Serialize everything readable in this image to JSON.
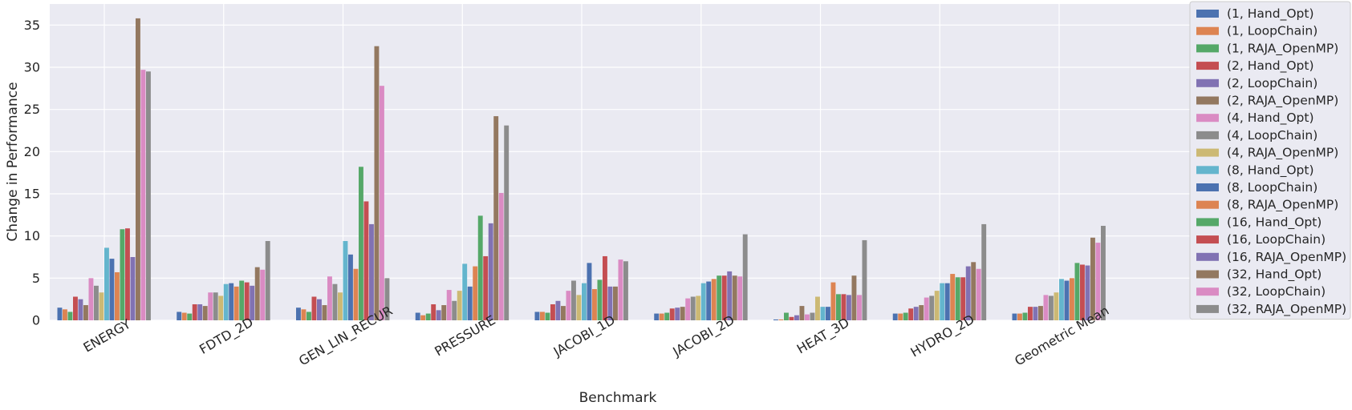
{
  "chart_data": {
    "type": "bar",
    "xlabel": "Benchmark",
    "ylabel": "Change in Performance",
    "ylim": [
      0,
      37.5
    ],
    "yticks": [
      0,
      5,
      10,
      15,
      20,
      25,
      30,
      35
    ],
    "grid": true,
    "legend_position": "right",
    "categories": [
      "ENERGY",
      "FDTD_2D",
      "GEN_LIN_RECUR",
      "PRESSURE",
      "JACOBI_1D",
      "JACOBI_2D",
      "HEAT_3D",
      "HYDRO_2D",
      "Geometric Mean"
    ],
    "series": [
      {
        "name": "(1, Hand_Opt)",
        "color": "#4c72b0",
        "values": [
          1.5,
          1.0,
          1.5,
          0.9,
          1.0,
          0.8,
          0.1,
          0.8,
          0.8
        ]
      },
      {
        "name": "(1, LoopChain)",
        "color": "#dd8452",
        "values": [
          1.3,
          0.9,
          1.3,
          0.6,
          1.0,
          0.8,
          0.1,
          0.8,
          0.8
        ]
      },
      {
        "name": "(1, RAJA_OpenMP)",
        "color": "#55a868",
        "values": [
          1.0,
          0.8,
          1.0,
          0.8,
          0.9,
          0.9,
          0.9,
          0.9,
          0.9
        ]
      },
      {
        "name": "(2, Hand_Opt)",
        "color": "#c44e52",
        "values": [
          2.8,
          1.9,
          2.8,
          1.9,
          1.9,
          1.4,
          0.4,
          1.4,
          1.6
        ]
      },
      {
        "name": "(2, LoopChain)",
        "color": "#8172b3",
        "values": [
          2.5,
          1.9,
          2.5,
          1.2,
          2.3,
          1.5,
          0.6,
          1.6,
          1.6
        ]
      },
      {
        "name": "(2, RAJA_OpenMP)",
        "color": "#937860",
        "values": [
          1.8,
          1.7,
          1.8,
          1.8,
          1.7,
          1.6,
          1.7,
          1.8,
          1.7
        ]
      },
      {
        "name": "(4, Hand_Opt)",
        "color": "#da8bc3",
        "values": [
          5.0,
          3.3,
          5.2,
          3.6,
          3.5,
          2.6,
          0.7,
          2.7,
          3.0
        ]
      },
      {
        "name": "(4, LoopChain)",
        "color": "#8c8c8c",
        "values": [
          4.1,
          3.3,
          4.3,
          2.3,
          4.7,
          2.8,
          0.9,
          2.9,
          2.9
        ]
      },
      {
        "name": "(4, RAJA_OpenMP)",
        "color": "#ccb974",
        "values": [
          3.3,
          2.9,
          3.3,
          3.5,
          3.0,
          2.9,
          2.8,
          3.5,
          3.3
        ]
      },
      {
        "name": "(8, Hand_Opt)",
        "color": "#64b5cd",
        "values": [
          8.6,
          4.3,
          9.4,
          6.7,
          4.4,
          4.4,
          1.6,
          4.4,
          4.9
        ]
      },
      {
        "name": "(8, LoopChain)",
        "color": "#4c72b0",
        "values": [
          7.3,
          4.4,
          7.8,
          4.0,
          6.8,
          4.6,
          1.6,
          4.4,
          4.7
        ]
      },
      {
        "name": "(8, RAJA_OpenMP)",
        "color": "#dd8452",
        "values": [
          5.7,
          4.0,
          6.1,
          6.4,
          3.7,
          4.9,
          4.5,
          5.5,
          5.0
        ]
      },
      {
        "name": "(16, Hand_Opt)",
        "color": "#55a868",
        "values": [
          10.8,
          4.7,
          18.2,
          12.4,
          4.8,
          5.3,
          3.1,
          5.1,
          6.8
        ]
      },
      {
        "name": "(16, LoopChain)",
        "color": "#c44e52",
        "values": [
          10.9,
          4.5,
          14.1,
          7.6,
          7.6,
          5.3,
          3.1,
          5.1,
          6.6
        ]
      },
      {
        "name": "(16, RAJA_OpenMP)",
        "color": "#8172b3",
        "values": [
          7.5,
          4.1,
          11.4,
          11.5,
          4.0,
          5.8,
          3.0,
          6.4,
          6.5
        ]
      },
      {
        "name": "(32, Hand_Opt)",
        "color": "#937860",
        "values": [
          35.8,
          6.3,
          32.5,
          24.2,
          4.0,
          5.3,
          5.3,
          6.9,
          9.8
        ]
      },
      {
        "name": "(32, LoopChain)",
        "color": "#da8bc3",
        "values": [
          29.7,
          6.0,
          27.8,
          15.1,
          7.2,
          5.2,
          3.0,
          6.1,
          9.2
        ]
      },
      {
        "name": "(32, RAJA_OpenMP)",
        "color": "#8c8c8c",
        "values": [
          29.5,
          9.4,
          5.0,
          23.1,
          7.0,
          10.2,
          9.5,
          11.4,
          11.2
        ]
      }
    ]
  }
}
